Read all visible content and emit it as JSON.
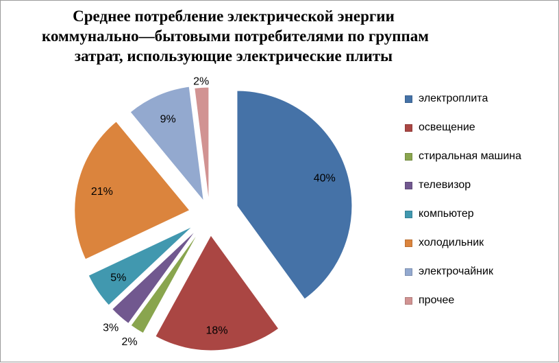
{
  "chart_data": {
    "type": "pie",
    "title_lines": [
      "Среднее потребление электрической энергии",
      "коммунально—бытовыми потребителями по группам",
      "затрат, использующие электрические  плиты"
    ],
    "categories": [
      "электроплита",
      "освещение",
      "стиральная машина",
      "телевизор",
      "компьютер",
      "холодильник",
      "электрочайник",
      "прочее"
    ],
    "values": [
      40,
      18,
      2,
      3,
      5,
      21,
      9,
      2
    ],
    "data_labels": [
      "40%",
      "18%",
      "2%",
      "3%",
      "5%",
      "21%",
      "9%",
      "2%"
    ],
    "colors": [
      "#4572A7",
      "#AA4643",
      "#89A54E",
      "#71588F",
      "#4198AF",
      "#DB843D",
      "#93A9CF",
      "#D19392"
    ],
    "exploded": true,
    "legend_position": "right"
  }
}
